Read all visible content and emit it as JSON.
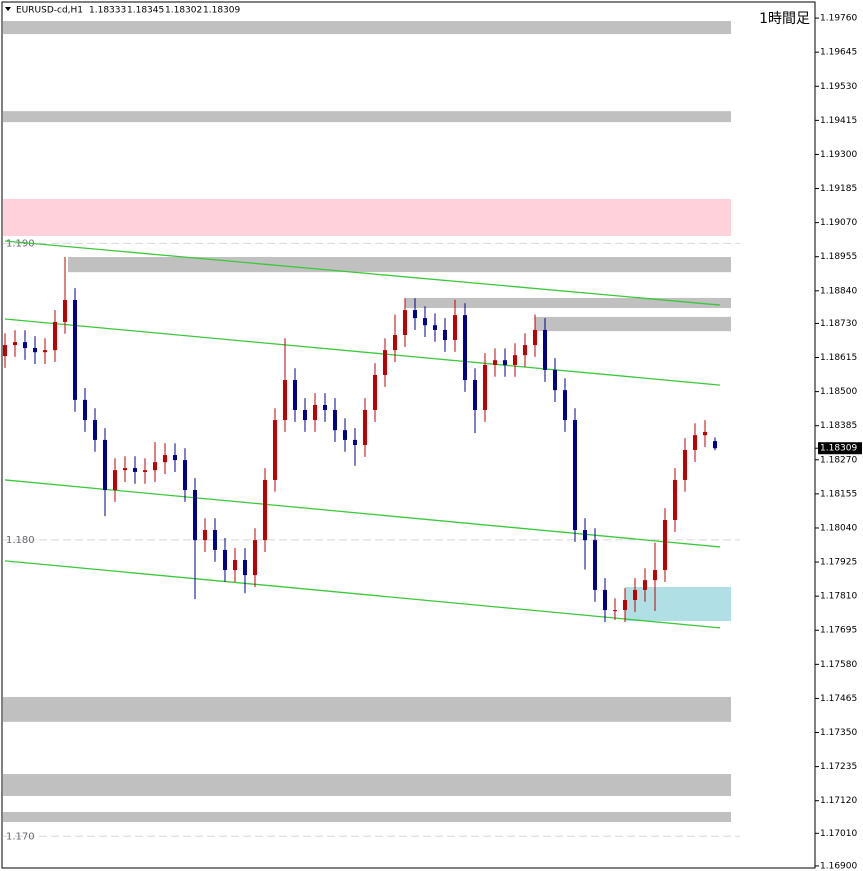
{
  "chart_data": {
    "type": "candlestick",
    "title": "EURUSD-cd,H1",
    "timeframe_label": "1時間足",
    "up_color": "#c00000",
    "down_color": "#000090",
    "ylim": [
      1.16893,
      1.19821
    ],
    "yticks": [
      {
        "value": 1.1976,
        "label": "1.19760"
      },
      1.19645,
      {
        "value": 1.1953,
        "label": "1.19530"
      },
      1.19415,
      {
        "value": 1.193,
        "label": "1.19300"
      },
      1.19185,
      {
        "value": 1.1907,
        "label": "1.19070"
      },
      1.18955,
      {
        "value": 1.1884,
        "label": "1.18840"
      },
      {
        "value": 1.1873,
        "label": "1.18730"
      },
      1.18615,
      {
        "value": 1.185,
        "label": "1.18500"
      },
      1.18385,
      {
        "value": 1.1827,
        "label": "1.18270"
      },
      1.18155,
      {
        "value": 1.1804,
        "label": "1.18040"
      },
      1.17925,
      {
        "value": 1.1781,
        "label": "1.17810"
      },
      1.17695,
      {
        "value": 1.1758,
        "label": "1.17580"
      },
      1.17465,
      {
        "value": 1.1735,
        "label": "1.17350"
      },
      1.17235,
      {
        "value": 1.1712,
        "label": "1.17120"
      },
      {
        "value": 1.1701,
        "label": "1.17010"
      },
      {
        "value": 1.169,
        "label": "1.16900"
      }
    ],
    "levels": [
      {
        "value": 1.19,
        "label": "1.190"
      },
      {
        "value": 1.18,
        "label": "1.180"
      },
      {
        "value": 1.17,
        "label": "1.170"
      }
    ],
    "zones": [
      {
        "low": 1.19706,
        "high": 1.1975,
        "color": "#c0c0c0"
      },
      {
        "low": 1.19409,
        "high": 1.19446,
        "color": "#c0c0c0"
      },
      {
        "low": 1.19025,
        "high": 1.1915,
        "color": "#ffd1da"
      },
      {
        "low": 1.18903,
        "high": 1.18954,
        "color": "#c0c0c0"
      },
      {
        "low": 1.18782,
        "high": 1.18816,
        "color": "#c0c0c0"
      },
      {
        "low": 1.18704,
        "high": 1.18752,
        "color": "#c0c0c0"
      },
      {
        "low": 1.17386,
        "high": 1.1747,
        "color": "#c0c0c0"
      },
      {
        "low": 1.17136,
        "high": 1.1721,
        "color": "#c0c0c0"
      },
      {
        "low": 1.17048,
        "high": 1.17082,
        "color": "#c0c0c0"
      },
      {
        "low": 1.17726,
        "high": 1.17841,
        "color": "#b0e0e6"
      }
    ],
    "trendline_color": "#3cc83c",
    "trendlines": [
      {
        "from": 1.19008,
        "to": 1.18792
      },
      {
        "from": 1.18745,
        "to": 1.18522
      },
      {
        "from": 1.18202,
        "to": 1.17976
      },
      {
        "from": 1.17929,
        "to": 1.17703
      }
    ],
    "open": [
      1.1862,
      1.18657,
      1.18667,
      1.18647,
      1.18633,
      1.1864,
      1.18735,
      1.18809,
      1.18472,
      1.18404,
      1.18337,
      1.18168,
      1.18235,
      1.18242,
      1.18229,
      1.18235,
      1.18262,
      1.18286,
      1.18269,
      1.18168,
      1.17999,
      1.18033,
      1.17966,
      1.17898,
      1.17932,
      1.17881,
      1.17999,
      1.18202,
      1.18404,
      1.18539,
      1.18438,
      1.18404,
      1.18455,
      1.18438,
      1.1837,
      1.18337,
      1.1832,
      1.18438,
      1.18556,
      1.1864,
      1.18691,
      1.18775,
      1.18748,
      1.18724,
      1.18708,
      1.18674,
      1.18758,
      1.18539,
      1.18438,
      1.1859,
      1.18606,
      1.1859,
      1.18623,
      1.18657,
      1.18708,
      1.18573,
      1.18505,
      1.18404,
      1.18033,
      1.17999,
      1.17831,
      1.17763,
      1.17763,
      1.17797,
      1.17831,
      1.17864,
      1.17898,
      1.18067,
      1.18202,
      1.18303,
      1.18353,
      1.18333
    ],
    "high": [
      1.18697,
      1.18707,
      1.18707,
      1.18687,
      1.1868,
      1.18775,
      1.18954,
      1.18849,
      1.18512,
      1.18444,
      1.18377,
      1.18275,
      1.18282,
      1.18282,
      1.18275,
      1.1833,
      1.18326,
      1.18326,
      1.18309,
      1.18208,
      1.18073,
      1.18073,
      1.18006,
      1.17972,
      1.17972,
      1.18039,
      1.18242,
      1.18444,
      1.1868,
      1.18579,
      1.18478,
      1.18495,
      1.18495,
      1.18478,
      1.1841,
      1.18377,
      1.18478,
      1.18596,
      1.1868,
      1.1876,
      1.18815,
      1.18815,
      1.18788,
      1.18764,
      1.18748,
      1.1881,
      1.18798,
      1.18579,
      1.1863,
      1.18646,
      1.18646,
      1.18663,
      1.18697,
      1.1876,
      1.18748,
      1.18613,
      1.18545,
      1.18444,
      1.18073,
      1.18039,
      1.17871,
      1.17803,
      1.17837,
      1.17871,
      1.17904,
      1.1799,
      1.18107,
      1.18242,
      1.18343,
      1.18393,
      1.18404,
      1.18345
    ],
    "low": [
      1.1858,
      1.18617,
      1.18607,
      1.18593,
      1.18593,
      1.186,
      1.18695,
      1.18432,
      1.18364,
      1.18297,
      1.1808,
      1.18128,
      1.18195,
      1.18189,
      1.18189,
      1.18195,
      1.18222,
      1.18229,
      1.18128,
      1.178,
      1.17959,
      1.17926,
      1.17858,
      1.17858,
      1.1782,
      1.17841,
      1.17959,
      1.18162,
      1.18364,
      1.18398,
      1.18364,
      1.18364,
      1.18398,
      1.1833,
      1.18297,
      1.1825,
      1.1828,
      1.18398,
      1.18516,
      1.186,
      1.18651,
      1.18708,
      1.18684,
      1.18668,
      1.18634,
      1.18634,
      1.18499,
      1.1836,
      1.18398,
      1.1855,
      1.1855,
      1.1855,
      1.18583,
      1.18617,
      1.18533,
      1.18465,
      1.18364,
      1.17993,
      1.179,
      1.17791,
      1.17723,
      1.1773,
      1.17723,
      1.17757,
      1.17791,
      1.1776,
      1.17858,
      1.18027,
      1.18162,
      1.18263,
      1.18313,
      1.18302
    ],
    "close": [
      1.18657,
      1.18667,
      1.18647,
      1.18633,
      1.1864,
      1.18735,
      1.18809,
      1.18472,
      1.18404,
      1.18337,
      1.18168,
      1.18235,
      1.18242,
      1.18229,
      1.18235,
      1.18262,
      1.18286,
      1.18269,
      1.18168,
      1.17999,
      1.18033,
      1.17966,
      1.17898,
      1.17932,
      1.17881,
      1.17999,
      1.18202,
      1.18404,
      1.18539,
      1.18438,
      1.18404,
      1.18455,
      1.18438,
      1.1837,
      1.18337,
      1.1832,
      1.18438,
      1.18556,
      1.1864,
      1.18691,
      1.18775,
      1.18748,
      1.18724,
      1.18708,
      1.18674,
      1.18758,
      1.18539,
      1.18438,
      1.1859,
      1.18606,
      1.1859,
      1.18623,
      1.18657,
      1.18708,
      1.18573,
      1.18505,
      1.18404,
      1.18033,
      1.17999,
      1.17831,
      1.17763,
      1.17763,
      1.17797,
      1.17831,
      1.17864,
      1.17898,
      1.18067,
      1.18202,
      1.18303,
      1.18353,
      1.18364,
      1.18309
    ]
  }
}
